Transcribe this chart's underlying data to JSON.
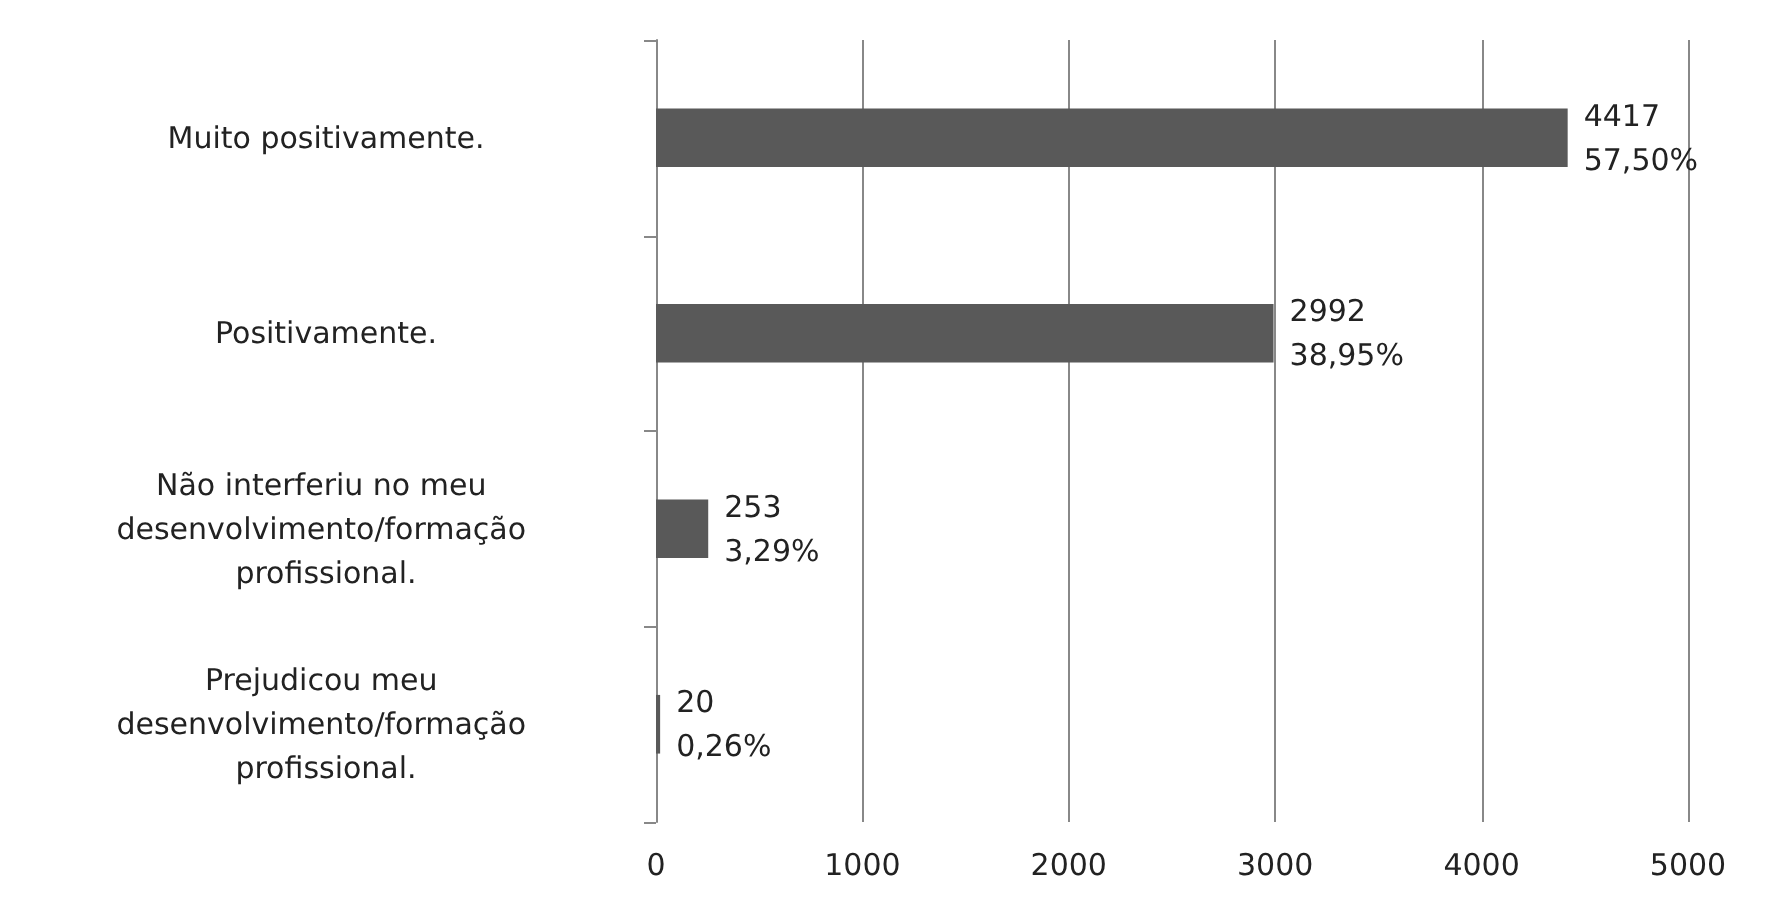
{
  "chart_data": {
    "type": "bar",
    "orientation": "horizontal",
    "categories": [
      "Muito positivamente.",
      "Positivamente.",
      "Não interferiu no meu desenvolvimento/formação profissional.",
      "Prejudicou meu desenvolvimento/formação profissional."
    ],
    "values": [
      4417,
      2992,
      253,
      20
    ],
    "color": "#595959",
    "value_labels": [
      "4417\n57,50%",
      "2992\n38,95%",
      "253\n3,29%",
      "20\n0,26%"
    ],
    "xlim": [
      0,
      5000
    ],
    "xticks": [
      0,
      1000,
      2000,
      3000,
      4000,
      5000
    ],
    "grid": "x"
  }
}
